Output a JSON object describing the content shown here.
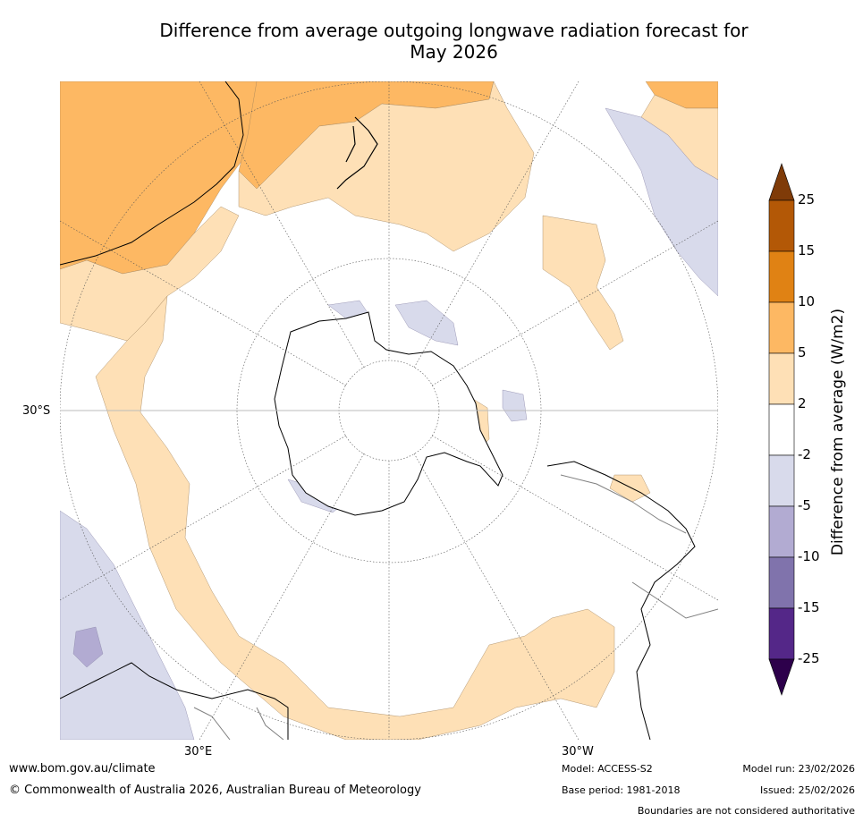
{
  "title_line1": "Difference from average outgoing longwave radiation forecast for",
  "title_line2": "May 2026",
  "map": {
    "projection": "south-polar-stereographic",
    "lat_labels": [
      "30°S"
    ],
    "lon_labels": [
      "30°E",
      "30°W"
    ]
  },
  "colorbar": {
    "title": "Difference from average (W/m2)",
    "ticks": [
      "25",
      "15",
      "10",
      "5",
      "2",
      "-2",
      "-5",
      "-10",
      "-15",
      "-25"
    ],
    "colors": {
      "above_25": "#7f3b08",
      "15_25": "#b35806",
      "10_15": "#e08214",
      "5_10": "#fdb863",
      "2_5": "#fee0b6",
      "neutral": "#ffffff",
      "m5_m2": "#d8daeb",
      "m10_m5": "#b2abd2",
      "m15_m10": "#8073ac",
      "m25_m15": "#542788",
      "below_m25": "#2d004b"
    }
  },
  "footer": {
    "url": "www.bom.gov.au/climate",
    "copyright": "© Commonwealth of Australia 2026, Australian Bureau of Meteorology",
    "model": "Model: ACCESS-S2",
    "base_period": "Base period: 1981-2018",
    "model_run": "Model run: 23/02/2026",
    "issued": "Issued: 25/02/2026",
    "disclaimer": "Boundaries are not considered authoritative"
  }
}
